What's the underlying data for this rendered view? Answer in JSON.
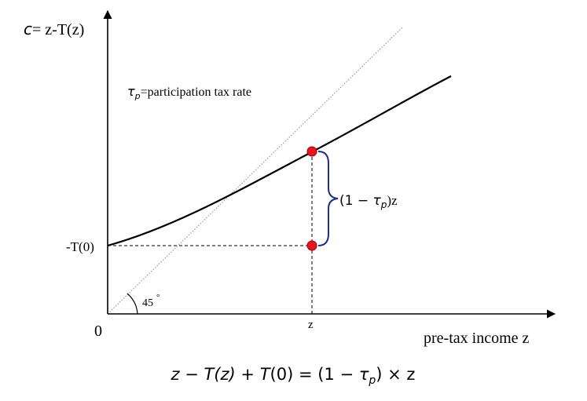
{
  "labels": {
    "y_axis": "c= z-T(z)",
    "y_axis_c": "c",
    "y_axis_rest": "= z-T(z)",
    "tau_def_sym": "τ",
    "tau_def_sub": "p",
    "tau_def_rest": "=participation tax rate",
    "y_intercept": "-T(0)",
    "origin": "0",
    "x_tick": "z",
    "x_axis": "pre-tax income z",
    "angle": "45",
    "angle_degree": "°",
    "brace_pre": "(1 − ",
    "brace_tau": "τ",
    "brace_sub": "p",
    "brace_post": ")z"
  },
  "equation": {
    "part1": "z − ",
    "T1": "T",
    "part2": "(z) + ",
    "T2": "T",
    "part3": "(0) = (1 − ",
    "tau": "τ",
    "sub": "p",
    "part4": ") × z"
  },
  "colors": {
    "curve": "#000000",
    "point": "#e8141e",
    "point_stroke": "#a00000",
    "brace": "#1f2d8c",
    "guide": "#888888"
  }
}
